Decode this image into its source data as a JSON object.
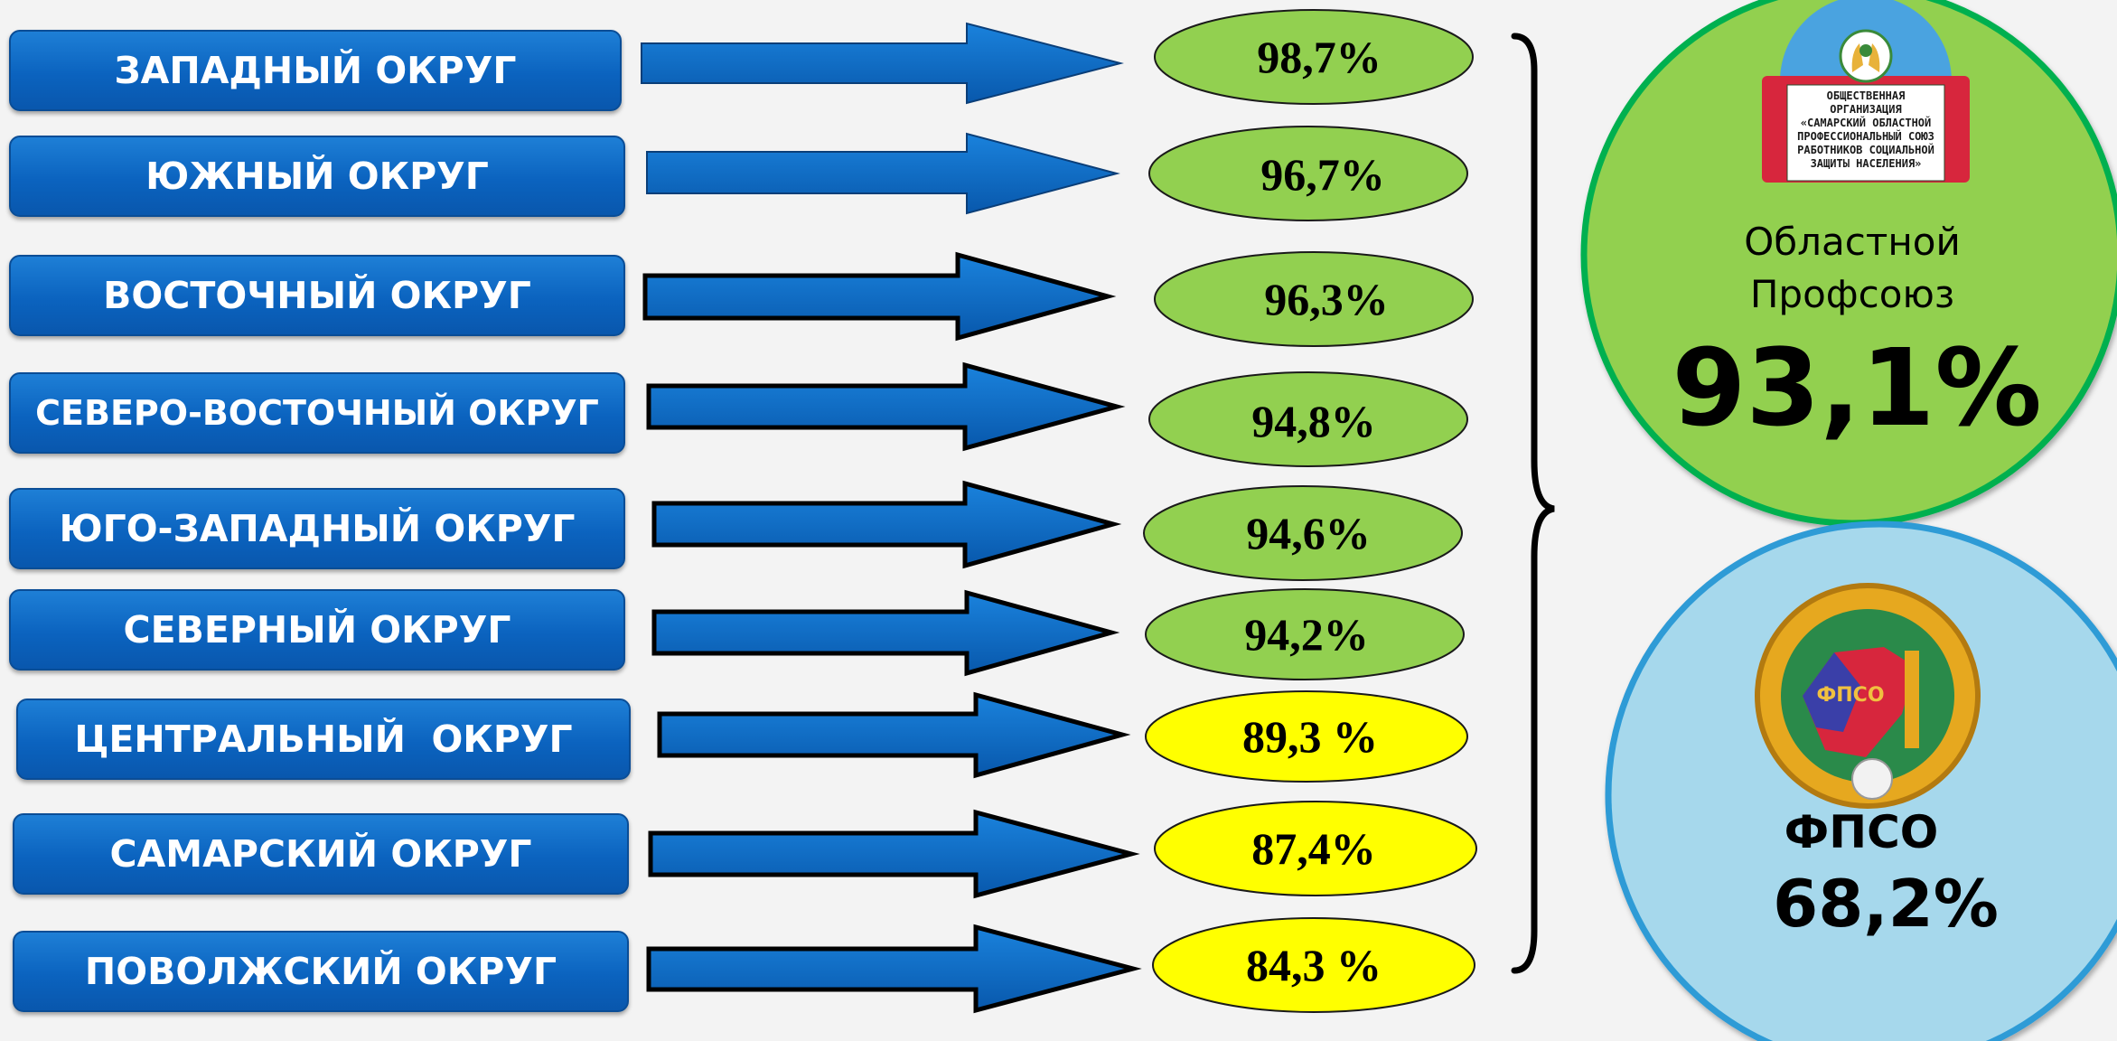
{
  "districts": [
    {
      "name": "ЗАПАДНЫЙ ОКРУГ",
      "percent": "98,7%",
      "value": 98.7,
      "color": "#92d050"
    },
    {
      "name": "ЮЖНЫЙ ОКРУГ",
      "percent": "96,7%",
      "value": 96.7,
      "color": "#92d050"
    },
    {
      "name": "ВОСТОЧНЫЙ ОКРУГ",
      "percent": "96,3%",
      "value": 96.3,
      "color": "#92d050"
    },
    {
      "name": "СЕВЕРО-ВОСТОЧНЫЙ ОКРУГ",
      "percent": "94,8%",
      "value": 94.8,
      "color": "#92d050"
    },
    {
      "name": "ЮГО-ЗАПАДНЫЙ ОКРУГ",
      "percent": "94,6%",
      "value": 94.6,
      "color": "#92d050"
    },
    {
      "name": "СЕВЕРНЫЙ ОКРУГ",
      "percent": "94,2%",
      "value": 94.2,
      "color": "#92d050"
    },
    {
      "name": "ЦЕНТРАЛЬНЫЙ  ОКРУГ",
      "percent": "89,3 %",
      "value": 89.3,
      "color": "#ffff00"
    },
    {
      "name": "САМАРСКИЙ ОКРУГ",
      "percent": "87,4%",
      "value": 87.4,
      "color": "#ffff00"
    },
    {
      "name": "ПОВОЛЖСКИЙ ОКРУГ",
      "percent": "84,3 %",
      "value": 84.3,
      "color": "#ffff00"
    }
  ],
  "regional": {
    "logo_text": [
      "ОБЩЕСТВЕННАЯ",
      "ОРГАНИЗАЦИЯ",
      "«САМАРСКИЙ ОБЛАСТНОЙ",
      "ПРОФЕССИОНАЛЬНЫЙ СОЮЗ",
      "РАБОТНИКОВ СОЦИАЛЬНОЙ",
      "ЗАЩИТЫ НАСЕЛЕНИЯ»"
    ],
    "label_line1": "Областной",
    "label_line2": "Профсоюз",
    "percent": "93,1%",
    "value": 93.1,
    "fill_color": "#92d050",
    "border_color": "#00b050"
  },
  "federation": {
    "logo_text": "ФПСО",
    "label": "ФПСО",
    "percent": "68,2%",
    "value": 68.2,
    "fill_color": "#a6d8ec",
    "border_color": "#2e9bd6"
  },
  "colors": {
    "box_blue": "#0b63bf",
    "arrow_blue": "#0a6bc8",
    "above_threshold": "#92d050",
    "below_threshold": "#ffff00"
  }
}
